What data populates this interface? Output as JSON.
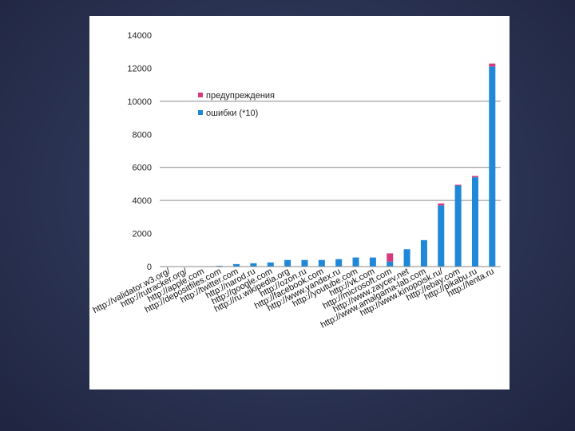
{
  "chart_data": {
    "type": "bar",
    "stacked": true,
    "categories": [
      "http://validator.w3.org/",
      "http://rutracker.org/",
      "http://apple.com",
      "http://depositfiles.com",
      "http://twitter.com",
      "http://narod.ru",
      "http://google.com",
      "http://ru.wikipedia.org",
      "http://ozon.ru",
      "http://facebook.com",
      "http://www.yandex.ru",
      "http://youtube.com",
      "http://vk.com",
      "http://microsoft.com",
      "http://www.zaycev.net",
      "http://www.amalgama-lab.com",
      "http://www.kinopoisk.ru/",
      "http://ebay.com",
      "http://pikabu.ru",
      "http://lenta.ru"
    ],
    "series": [
      {
        "name": "ошибки (*10)",
        "color": "#1f88d8",
        "values": [
          0,
          0,
          0,
          50,
          150,
          200,
          250,
          400,
          400,
          400,
          450,
          550,
          550,
          300,
          1050,
          1600,
          3700,
          4900,
          5400,
          12100
        ]
      },
      {
        "name": "предупреждения",
        "color": "#d63a7c",
        "values": [
          0,
          0,
          0,
          0,
          0,
          0,
          0,
          0,
          0,
          0,
          0,
          0,
          0,
          500,
          0,
          0,
          120,
          50,
          80,
          180
        ]
      }
    ],
    "y_ticks": [
      0,
      2000,
      4000,
      6000,
      8000,
      10000,
      12000,
      14000
    ],
    "ylim": [
      0,
      14000
    ],
    "gridlines": [
      4000,
      6000,
      10000
    ],
    "legend_position": "top-left"
  }
}
